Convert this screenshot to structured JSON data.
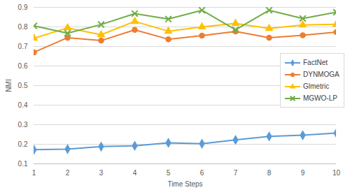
{
  "chart_data": {
    "type": "line",
    "x_label": "Time Steps",
    "y_label": "NMI",
    "x": [
      1,
      2,
      3,
      4,
      5,
      6,
      7,
      8,
      9,
      10
    ],
    "series": [
      {
        "name": "FactNet",
        "color": "#5b9bd5",
        "marker": "diamond",
        "values": [
          0.172,
          0.175,
          0.188,
          0.192,
          0.207,
          0.203,
          0.222,
          0.24,
          0.246,
          0.257
        ]
      },
      {
        "name": "DYNMOGA",
        "color": "#ed7d31",
        "marker": "circle",
        "values": [
          0.67,
          0.745,
          0.73,
          0.785,
          0.737,
          0.755,
          0.777,
          0.745,
          0.757,
          0.773
        ]
      },
      {
        "name": "Glmetric",
        "color": "#ffc000",
        "marker": "triangle",
        "values": [
          0.742,
          0.795,
          0.76,
          0.828,
          0.778,
          0.8,
          0.818,
          0.792,
          0.81,
          0.813
        ]
      },
      {
        "name": "MGWO-LP",
        "color": "#70ad47",
        "marker": "x",
        "values": [
          0.805,
          0.768,
          0.812,
          0.868,
          0.84,
          0.885,
          0.785,
          0.885,
          0.843,
          0.875
        ]
      }
    ],
    "xlim": [
      1,
      10
    ],
    "xticks": [
      1,
      2,
      3,
      4,
      5,
      6,
      7,
      8,
      9,
      10
    ],
    "ylim": [
      0.1,
      0.9
    ],
    "yticks": [
      0.1,
      0.2,
      0.3,
      0.4,
      0.5,
      0.6,
      0.7,
      0.8,
      0.9
    ],
    "grid": true,
    "legend": "right"
  }
}
